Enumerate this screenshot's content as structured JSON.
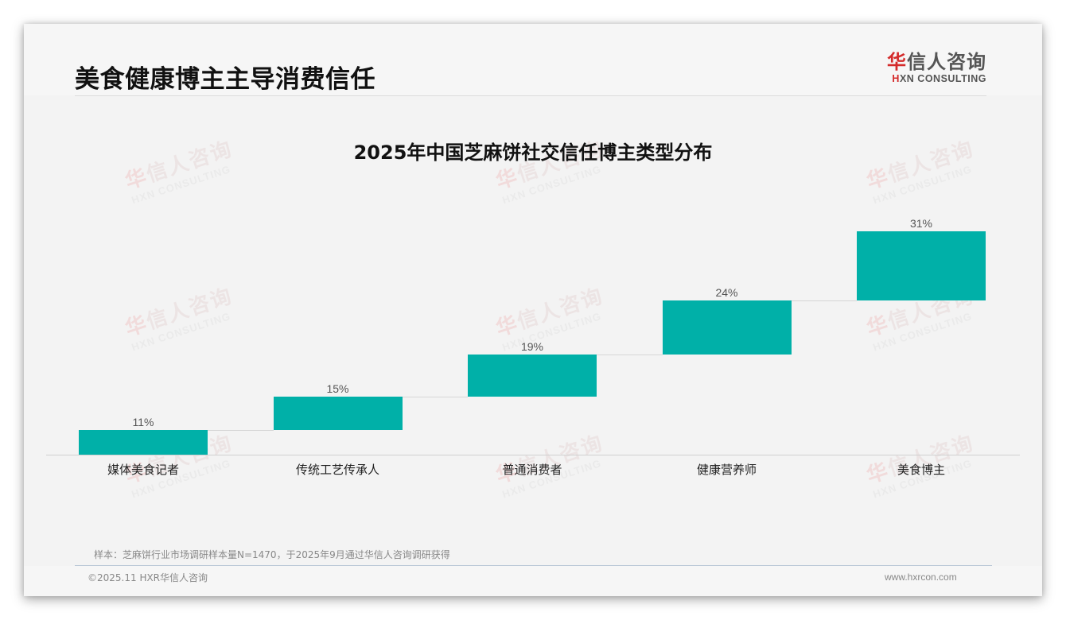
{
  "header": {
    "page_title": "美食健康博主主导消费信任",
    "logo_cn_mark": "华",
    "logo_cn_rest": "信人咨询",
    "logo_en_mark": "H",
    "logo_en_rest": "XN CONSULTING"
  },
  "watermark": {
    "cn_mark": "华",
    "cn_rest": "信人咨询",
    "en": "HXN CONSULTING"
  },
  "chart_data": {
    "type": "bar",
    "subtype": "waterfall-style floating bars",
    "title": "2025年中国芝麻饼社交信任博主类型分布",
    "categories": [
      "媒体美食记者",
      "传统工艺传承人",
      "普通消费者",
      "健康营养师",
      "美食博主"
    ],
    "values": [
      11,
      15,
      19,
      24,
      31
    ],
    "value_labels": [
      "11%",
      "15%",
      "19%",
      "24%",
      "31%"
    ],
    "unit": "%",
    "xlabel": "",
    "ylabel": "",
    "grid": false,
    "legend": "none",
    "bar_color": "#00b0a8"
  },
  "footer": {
    "source_note": "样本：芝麻饼行业市场调研样本量N=1470，于2025年9月通过华信人咨询调研获得",
    "copyright": "©2025.11 HXR华信人咨询",
    "website": "www.hxrcon.com"
  }
}
